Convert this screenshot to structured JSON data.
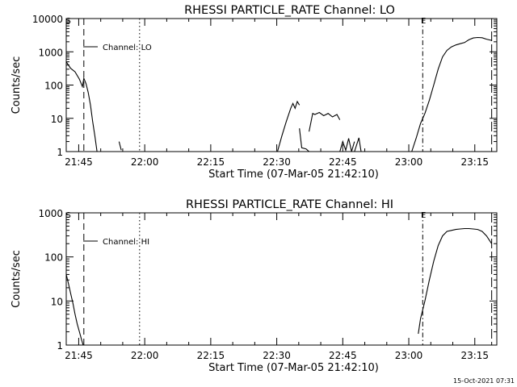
{
  "timestamp": "15-Oct-2021 07:31",
  "chart_data": [
    {
      "type": "line",
      "title": "RHESSI PARTICLE_RATE Channel: LO",
      "xlabel": "Start Time (07-Mar-05 21:42:10)",
      "ylabel": "Counts/sec",
      "legend": "Channel: LO",
      "legend_position": "top-left",
      "y_scale": "log",
      "ylim": [
        1,
        10000
      ],
      "xlim": [
        "21:42:10",
        "23:20:00"
      ],
      "xticks": [
        "21:45",
        "22:00",
        "22:15",
        "22:30",
        "22:45",
        "23:00",
        "23:15"
      ],
      "yticks": [
        "1",
        "10",
        "100",
        "1000",
        "10000"
      ],
      "vlines": [
        {
          "time": "21:46:10",
          "style": "dashed"
        },
        {
          "time": "21:58:50",
          "style": "dotted"
        },
        {
          "time": "23:03:10",
          "style": "dashdot"
        },
        {
          "time": "23:18:50",
          "style": "longdash"
        }
      ],
      "markers": [
        {
          "time": "21:42:40",
          "label": "S"
        },
        {
          "time": "23:03:20",
          "label": "E"
        }
      ],
      "segments": [
        {
          "x": [
            "21:42:10",
            "21:43:10",
            "21:44:10",
            "21:45:10",
            "21:45:50",
            "21:46:10",
            "21:46:40",
            "21:47:10",
            "21:47:40",
            "21:48:10",
            "21:48:40",
            "21:49:10"
          ],
          "y": [
            500,
            320,
            250,
            150,
            90,
            160,
            110,
            60,
            25,
            8,
            3,
            1
          ]
        },
        {
          "x": [
            "21:54:10",
            "21:54:40"
          ],
          "y": [
            2,
            1.1
          ]
        },
        {
          "x": [
            "22:30:10",
            "22:31:10",
            "22:32:10",
            "22:33:10",
            "22:33:40",
            "22:34:10",
            "22:34:40",
            "22:35:10"
          ],
          "y": [
            1,
            3,
            8,
            20,
            28,
            20,
            32,
            25
          ]
        },
        {
          "x": [
            "22:35:10",
            "22:35:40",
            "22:36:40",
            "22:37:20"
          ],
          "y": [
            5,
            1.3,
            1.2,
            1
          ]
        },
        {
          "x": [
            "22:37:20",
            "22:38:10",
            "22:38:40",
            "22:39:40",
            "22:40:40",
            "22:41:40",
            "22:42:40",
            "22:43:40",
            "22:44:20"
          ],
          "y": [
            4,
            14,
            13,
            15,
            12,
            14,
            11,
            13,
            9
          ]
        },
        {
          "x": [
            "22:44:20",
            "22:45:00",
            "22:45:40",
            "22:46:20",
            "22:47:00",
            "22:47:40"
          ],
          "y": [
            1,
            2,
            1.1,
            2.5,
            1,
            2
          ]
        },
        {
          "x": [
            "22:47:40",
            "22:48:40",
            "22:49:10"
          ],
          "y": [
            1,
            2.6,
            1
          ]
        },
        {
          "x": [
            "23:00:40",
            "23:01:40",
            "23:02:40",
            "23:03:40",
            "23:04:40",
            "23:05:40",
            "23:06:40",
            "23:07:40",
            "23:08:40",
            "23:09:40",
            "23:10:40",
            "23:11:40",
            "23:12:40",
            "23:13:40",
            "23:14:40",
            "23:15:40",
            "23:16:40",
            "23:17:40",
            "23:18:50"
          ],
          "y": [
            1,
            2.5,
            7,
            14,
            35,
            100,
            300,
            700,
            1100,
            1400,
            1600,
            1750,
            1900,
            2300,
            2600,
            2700,
            2650,
            2400,
            2200
          ]
        }
      ]
    },
    {
      "type": "line",
      "title": "RHESSI PARTICLE_RATE Channel: HI",
      "xlabel": "Start Time (07-Mar-05 21:42:10)",
      "ylabel": "Counts/sec",
      "legend": "Channel: HI",
      "legend_position": "top-left",
      "y_scale": "log",
      "ylim": [
        1,
        1000
      ],
      "xlim": [
        "21:42:10",
        "23:20:00"
      ],
      "xticks": [
        "21:45",
        "22:00",
        "22:15",
        "22:30",
        "22:45",
        "23:00",
        "23:15"
      ],
      "yticks": [
        "1",
        "10",
        "100",
        "1000"
      ],
      "vlines": [
        {
          "time": "21:46:10",
          "style": "dashed"
        },
        {
          "time": "21:58:50",
          "style": "dotted"
        },
        {
          "time": "23:03:10",
          "style": "dashdot"
        },
        {
          "time": "23:18:50",
          "style": "longdash"
        }
      ],
      "markers": [
        {
          "time": "21:42:40",
          "label": "S"
        },
        {
          "time": "23:03:20",
          "label": "E"
        }
      ],
      "segments": [
        {
          "x": [
            "21:42:10",
            "21:42:40",
            "21:43:10",
            "21:43:40",
            "21:44:10",
            "21:44:40",
            "21:45:10",
            "21:45:40",
            "21:46:00"
          ],
          "y": [
            40,
            25,
            15,
            9,
            5,
            3,
            2,
            1.3,
            1
          ]
        },
        {
          "x": [
            "23:02:10",
            "23:02:40",
            "23:03:40",
            "23:04:40",
            "23:05:40",
            "23:06:40",
            "23:07:40",
            "23:08:40",
            "23:09:40",
            "23:10:40",
            "23:11:40",
            "23:12:40",
            "23:13:40",
            "23:14:40",
            "23:15:40",
            "23:16:40",
            "23:17:40",
            "23:18:50"
          ],
          "y": [
            1.8,
            4,
            10,
            30,
            80,
            180,
            300,
            380,
            400,
            420,
            430,
            440,
            440,
            430,
            420,
            380,
            300,
            200
          ]
        }
      ]
    }
  ]
}
